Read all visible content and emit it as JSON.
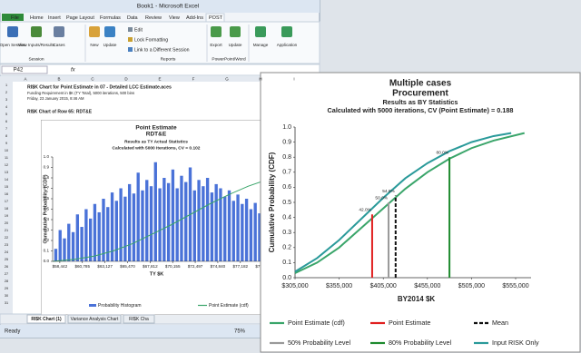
{
  "window": {
    "title": "Book1 - Microsoft Excel"
  },
  "ribbon": {
    "tabs": [
      "File",
      "Home",
      "Insert",
      "Page Layout",
      "Formulas",
      "Data",
      "Review",
      "View",
      "Add-Ins",
      "POST"
    ],
    "buttons": [
      "Open Session",
      "View Inputs/Results",
      "Cases",
      "New",
      "Update",
      "Edit",
      "Lock Formatting",
      "Link to a Different Session",
      "Export",
      "Update",
      "Manage",
      "Application"
    ],
    "groups": [
      "Session",
      "Reports",
      "PowerPoint/Word"
    ]
  },
  "formula_bar": {
    "name_box": "P42",
    "fx": "fx"
  },
  "columns": [
    "A",
    "B",
    "C",
    "D",
    "E",
    "F",
    "G",
    "H",
    "I"
  ],
  "rows": [
    "1",
    "2",
    "3",
    "4",
    "5",
    "6",
    "7",
    "8",
    "9",
    "10",
    "11",
    "12",
    "13",
    "14",
    "15",
    "16",
    "17",
    "18",
    "19",
    "20",
    "21",
    "22",
    "23",
    "24",
    "25",
    "26",
    "27",
    "28",
    "29",
    "30",
    "31"
  ],
  "sheet": {
    "lines": [
      "RI$K Chart for Point Estimate in 07 - Detailed LCC Estimate.aces",
      "Funding Requirement in $K (TY Total), 5000 iterations, 500 bins",
      "Friday, 23 January 2015, 8:46 AM",
      "RI$K Chart of Row 65: RDT&E"
    ]
  },
  "sheet_tabs": [
    "RI$K Chart (1)",
    "Variance Analysis Chart",
    "RI$K Cha"
  ],
  "status": {
    "mode": "Ready",
    "zoom": "75%"
  },
  "chart_data": [
    {
      "type": "histogram",
      "title": "Point Estimate",
      "subtitle": "RDT&E",
      "notes": [
        "Results as TY Actual Statistics",
        "Calculated with 5000 iterations, CV = 0.102"
      ],
      "x_label": "TY $K",
      "y_label": "Cumulative Probability (CDF)",
      "legend": "bottom",
      "xlim": [
        57700,
        80500
      ],
      "ylim": [
        0,
        1
      ],
      "xticks": [
        {
          "value": 58442,
          "label": "$58,442"
        },
        {
          "value": 60785,
          "label": "$60,785"
        },
        {
          "value": 63127,
          "label": "$63,127"
        },
        {
          "value": 65470,
          "label": "$65,470"
        },
        {
          "value": 67812,
          "label": "$67,812"
        },
        {
          "value": 70155,
          "label": "$70,155"
        },
        {
          "value": 72497,
          "label": "$72,497"
        },
        {
          "value": 74840,
          "label": "$74,840"
        },
        {
          "value": 77182,
          "label": "$77,182"
        },
        {
          "value": 79525,
          "label": "$79,525"
        }
      ],
      "yticks": [
        {
          "value": 0,
          "label": "0.0"
        },
        0.1,
        0.2,
        0.3,
        0.4,
        0.5,
        0.6,
        0.7,
        0.8,
        0.9,
        {
          "value": 1,
          "label": "1.0"
        }
      ],
      "bins": [
        57800,
        58250,
        58700,
        59150,
        59600,
        60050,
        60500,
        60950,
        61400,
        61850,
        62300,
        62750,
        63200,
        63650,
        64100,
        64550,
        65000,
        65450,
        65900,
        66350,
        66800,
        67250,
        67700,
        68150,
        68600,
        69050,
        69500,
        69950,
        70400,
        70850,
        71300,
        71750,
        72200,
        72650,
        73100,
        73550,
        74000,
        74450,
        74900,
        75350,
        75800,
        76250,
        76700,
        77150,
        77600,
        78050,
        78500,
        78950,
        79400,
        79850,
        80300
      ],
      "series": [
        {
          "name": "Probability Histogram",
          "color": "#4a72d8",
          "values": [
            0.12,
            0.3,
            0.22,
            0.36,
            0.28,
            0.45,
            0.33,
            0.5,
            0.41,
            0.55,
            0.47,
            0.6,
            0.52,
            0.66,
            0.58,
            0.7,
            0.62,
            0.74,
            0.65,
            0.85,
            0.68,
            0.78,
            0.72,
            0.95,
            0.7,
            0.8,
            0.75,
            0.88,
            0.7,
            0.82,
            0.76,
            0.9,
            0.68,
            0.78,
            0.72,
            0.8,
            0.66,
            0.74,
            0.7,
            0.62,
            0.68,
            0.58,
            0.64,
            0.55,
            0.6,
            0.5,
            0.56,
            0.46,
            0.52,
            0.42
          ]
        }
      ],
      "lines": [
        {
          "name": "Point Estimate (cdf)",
          "color": "#3aa56a",
          "x": [
            57700,
            60000,
            62000,
            64000,
            66000,
            68000,
            70000,
            72000,
            74000,
            76000,
            78000,
            80500
          ],
          "values": [
            0,
            0.02,
            0.05,
            0.1,
            0.17,
            0.26,
            0.35,
            0.45,
            0.55,
            0.64,
            0.72,
            0.8
          ]
        }
      ]
    },
    {
      "type": "line",
      "title": "Multiple cases",
      "subtitle": "Procurement",
      "notes": [
        "Results as BY Statistics",
        "Calculated with 5000 iterations, CV (Point Estimate) = 0.188"
      ],
      "x_label": "BY2014 $K",
      "y_label": "Cumulative Probability (CDF)",
      "legend": "bottom",
      "xlim": [
        305000,
        580000
      ],
      "ylim": [
        0,
        1
      ],
      "xticks": [
        {
          "value": 305000,
          "label": "$305,000"
        },
        {
          "value": 355000,
          "label": "$355,000"
        },
        {
          "value": 405000,
          "label": "$405,000"
        },
        {
          "value": 455000,
          "label": "$455,000"
        },
        {
          "value": 505000,
          "label": "$505,000"
        },
        {
          "value": 555000,
          "label": "$555,000"
        }
      ],
      "yticks": [
        {
          "value": 0,
          "label": "0.0"
        },
        0.1,
        0.2,
        0.3,
        0.4,
        0.5,
        0.6,
        0.7,
        0.8,
        0.9,
        {
          "value": 1,
          "label": "1.0"
        }
      ],
      "series": [
        {
          "name": "Point Estimate (cdf)",
          "color": "#3aa56a",
          "x": [
            305000,
            330000,
            355000,
            380000,
            405000,
            430000,
            455000,
            480000,
            505000,
            530000,
            565000
          ],
          "values": [
            0.03,
            0.1,
            0.2,
            0.33,
            0.46,
            0.59,
            0.7,
            0.79,
            0.86,
            0.91,
            0.96
          ]
        },
        {
          "name": "Input RISK Only",
          "color": "#2a9a9a",
          "x": [
            305000,
            330000,
            355000,
            380000,
            405000,
            430000,
            455000,
            480000,
            505000,
            530000,
            550000
          ],
          "values": [
            0.04,
            0.13,
            0.25,
            0.39,
            0.53,
            0.66,
            0.76,
            0.84,
            0.9,
            0.94,
            0.96
          ]
        }
      ],
      "reference_lines": [
        {
          "name": "Point Estimate",
          "color": "#e02020",
          "dash": false,
          "x": 392400,
          "value": 0.42,
          "value_label": "42.0%"
        },
        {
          "name": "Mean",
          "color": "#111111",
          "dash": true,
          "x": 419000,
          "value": 0.545,
          "value_label": "54.5%"
        },
        {
          "name": "50% Probability Level",
          "color": "#999999",
          "dash": false,
          "x": 411000,
          "value": 0.5,
          "value_label": "50.0%"
        },
        {
          "name": "80% Probability Level",
          "color": "#1e8a2e",
          "dash": false,
          "x": 480000,
          "value": 0.8,
          "value_label": "80.0%"
        }
      ]
    }
  ]
}
